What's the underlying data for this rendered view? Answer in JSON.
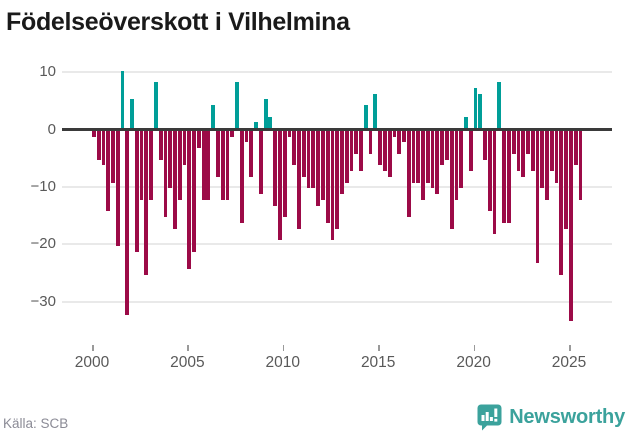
{
  "title": "Födelseöverskott i Vilhelmina",
  "source": "Källa: SCB",
  "branding": {
    "name": "Newsworthy",
    "icon": "newsworthy-bubble-chart-icon"
  },
  "colors": {
    "positive": "#009e98",
    "negative": "#9c0a47",
    "grid": "#e9e9e9",
    "zero_axis": "#3a3a3a",
    "axis_text": "#595959",
    "title_text": "#1a1a1a",
    "source_text": "#8b8b96",
    "brand": "#3ba29c"
  },
  "chart_data": {
    "type": "bar",
    "title": "Födelseöverskott i Vilhelmina",
    "xlabel": "",
    "ylabel": "",
    "grid": true,
    "legend": "none",
    "ylim": [
      -35,
      12
    ],
    "yticks": [
      10,
      0,
      -10,
      -20,
      -30
    ],
    "xticks": [
      2000,
      2005,
      2010,
      2015,
      2020,
      2025
    ],
    "x_start_year": 2000,
    "frequency": "quarterly",
    "x": [
      "2000Q1",
      "2000Q2",
      "2000Q3",
      "2000Q4",
      "2001Q1",
      "2001Q2",
      "2001Q3",
      "2001Q4",
      "2002Q1",
      "2002Q2",
      "2002Q3",
      "2002Q4",
      "2003Q1",
      "2003Q2",
      "2003Q3",
      "2003Q4",
      "2004Q1",
      "2004Q2",
      "2004Q3",
      "2004Q4",
      "2005Q1",
      "2005Q2",
      "2005Q3",
      "2005Q4",
      "2006Q1",
      "2006Q2",
      "2006Q3",
      "2006Q4",
      "2007Q1",
      "2007Q2",
      "2007Q3",
      "2007Q4",
      "2008Q1",
      "2008Q2",
      "2008Q3",
      "2008Q4",
      "2009Q1",
      "2009Q2",
      "2009Q3",
      "2009Q4",
      "2010Q1",
      "2010Q2",
      "2010Q3",
      "2010Q4",
      "2011Q1",
      "2011Q2",
      "2011Q3",
      "2011Q4",
      "2012Q1",
      "2012Q2",
      "2012Q3",
      "2012Q4",
      "2013Q1",
      "2013Q2",
      "2013Q3",
      "2013Q4",
      "2014Q1",
      "2014Q2",
      "2014Q3",
      "2014Q4",
      "2015Q1",
      "2015Q2",
      "2015Q3",
      "2015Q4",
      "2016Q1",
      "2016Q2",
      "2016Q3",
      "2016Q4",
      "2017Q1",
      "2017Q2",
      "2017Q3",
      "2017Q4",
      "2018Q1",
      "2018Q2",
      "2018Q3",
      "2018Q4",
      "2019Q1",
      "2019Q2",
      "2019Q3",
      "2019Q4",
      "2020Q1",
      "2020Q2",
      "2020Q3",
      "2020Q4",
      "2021Q1",
      "2021Q2",
      "2021Q3",
      "2021Q4",
      "2022Q1",
      "2022Q2",
      "2022Q3",
      "2022Q4",
      "2023Q1",
      "2023Q2",
      "2023Q3",
      "2023Q4",
      "2024Q1",
      "2024Q2",
      "2024Q3",
      "2024Q4",
      "2025Q1",
      "2025Q2",
      "2025Q3"
    ],
    "values": [
      -1,
      -5,
      -6,
      -14,
      -9,
      -20,
      10,
      -32,
      5,
      -21,
      -12,
      -25,
      -12,
      8,
      -5,
      -15,
      -10,
      -17,
      -12,
      -6,
      -24,
      -21,
      -3,
      -12,
      -12,
      4,
      -8,
      -12,
      -12,
      -1,
      8,
      -16,
      -2,
      -8,
      1,
      -11,
      5,
      2,
      -13,
      -19,
      -15,
      -1,
      -6,
      -17,
      -8,
      -10,
      -10,
      -13,
      -12,
      -16,
      -19,
      -17,
      -11,
      -9,
      -7,
      -4,
      -7,
      4,
      -4,
      6,
      -6,
      -7,
      -8,
      -1,
      -4,
      -2,
      -15,
      -9,
      -9,
      -12,
      -9,
      -10,
      -11,
      -6,
      -5,
      -17,
      -12,
      -10,
      2,
      -7,
      7,
      6,
      -5,
      -14,
      -18,
      8,
      -16,
      -16,
      -4,
      -7,
      -8,
      -4,
      -7,
      -23,
      -10,
      -12,
      -7,
      -9,
      -25,
      -17,
      -33,
      -6,
      -12
    ]
  }
}
